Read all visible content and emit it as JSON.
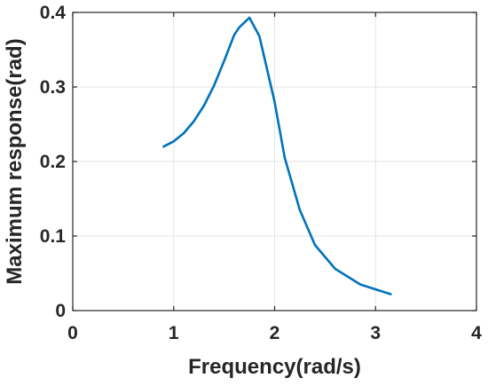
{
  "chart_data": {
    "type": "line",
    "title": "",
    "xlabel": "Frequency(rad/s)",
    "ylabel": "Maximum response(rad)",
    "xlim": [
      0,
      4
    ],
    "ylim": [
      0,
      0.4
    ],
    "xticks": [
      "0",
      "1",
      "2",
      "3",
      "4"
    ],
    "yticks": [
      "0",
      "0.1",
      "0.2",
      "0.3",
      "0.4"
    ],
    "grid": true,
    "series": [
      {
        "color": "#0072BD",
        "x": [
          0.9,
          1.0,
          1.1,
          1.2,
          1.3,
          1.4,
          1.5,
          1.6,
          1.65,
          1.75,
          1.85,
          2.0,
          2.1,
          2.25,
          2.4,
          2.6,
          2.85,
          3.15
        ],
        "y": [
          0.22,
          0.227,
          0.238,
          0.254,
          0.275,
          0.302,
          0.335,
          0.37,
          0.38,
          0.393,
          0.368,
          0.28,
          0.205,
          0.135,
          0.088,
          0.056,
          0.035,
          0.022
        ]
      }
    ]
  }
}
